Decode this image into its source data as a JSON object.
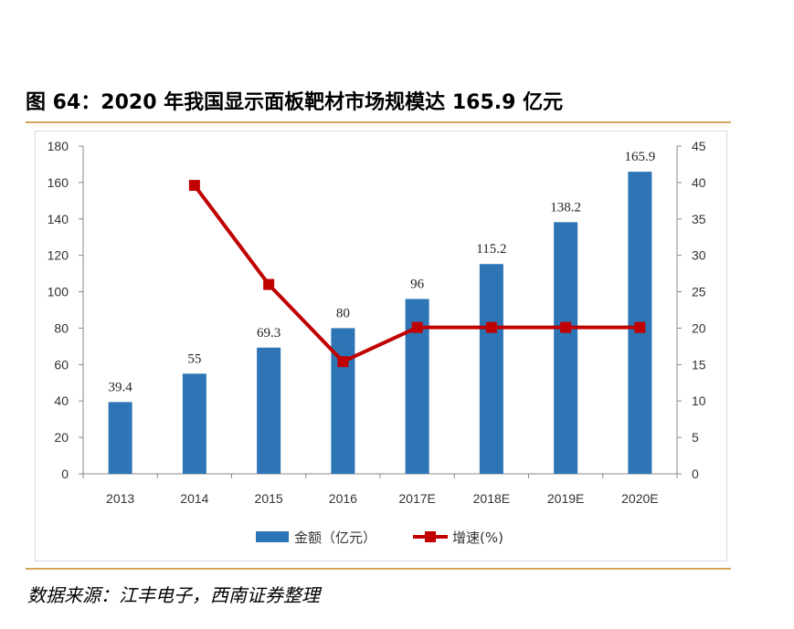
{
  "figure": {
    "title": "图 64：2020 年我国显示面板靶材市场规模达 165.9 亿元",
    "source": "数据来源：江丰电子，西南证券整理"
  },
  "colors": {
    "bar": "#2e75b6",
    "line": "#c00000",
    "rule": "#d4a35a"
  },
  "chart_data": {
    "type": "bar",
    "categories": [
      "2013",
      "2014",
      "2015",
      "2016",
      "2017E",
      "2018E",
      "2019E",
      "2020E"
    ],
    "series": [
      {
        "name": "金额（亿元）",
        "type": "bar",
        "axis": "left",
        "values": [
          39.4,
          55,
          69.3,
          80,
          96,
          115.2,
          138.2,
          165.9
        ],
        "labels": [
          "39.4",
          "55",
          "69.3",
          "80",
          "96",
          "115.2",
          "138.2",
          "165.9"
        ]
      },
      {
        "name": "增速(%)",
        "type": "line",
        "axis": "right",
        "values": [
          null,
          39.6,
          26,
          15.4,
          20.1,
          20.1,
          20.1,
          20.1
        ]
      }
    ],
    "y_left": {
      "min": 0,
      "max": 180,
      "ticks": [
        "0",
        "20",
        "40",
        "60",
        "80",
        "100",
        "120",
        "140",
        "160",
        "180"
      ]
    },
    "y_right": {
      "min": 0,
      "max": 45,
      "ticks": [
        "0",
        "5",
        "10",
        "15",
        "20",
        "25",
        "30",
        "35",
        "40",
        "45"
      ]
    },
    "grid": false,
    "legend_position": "bottom"
  }
}
